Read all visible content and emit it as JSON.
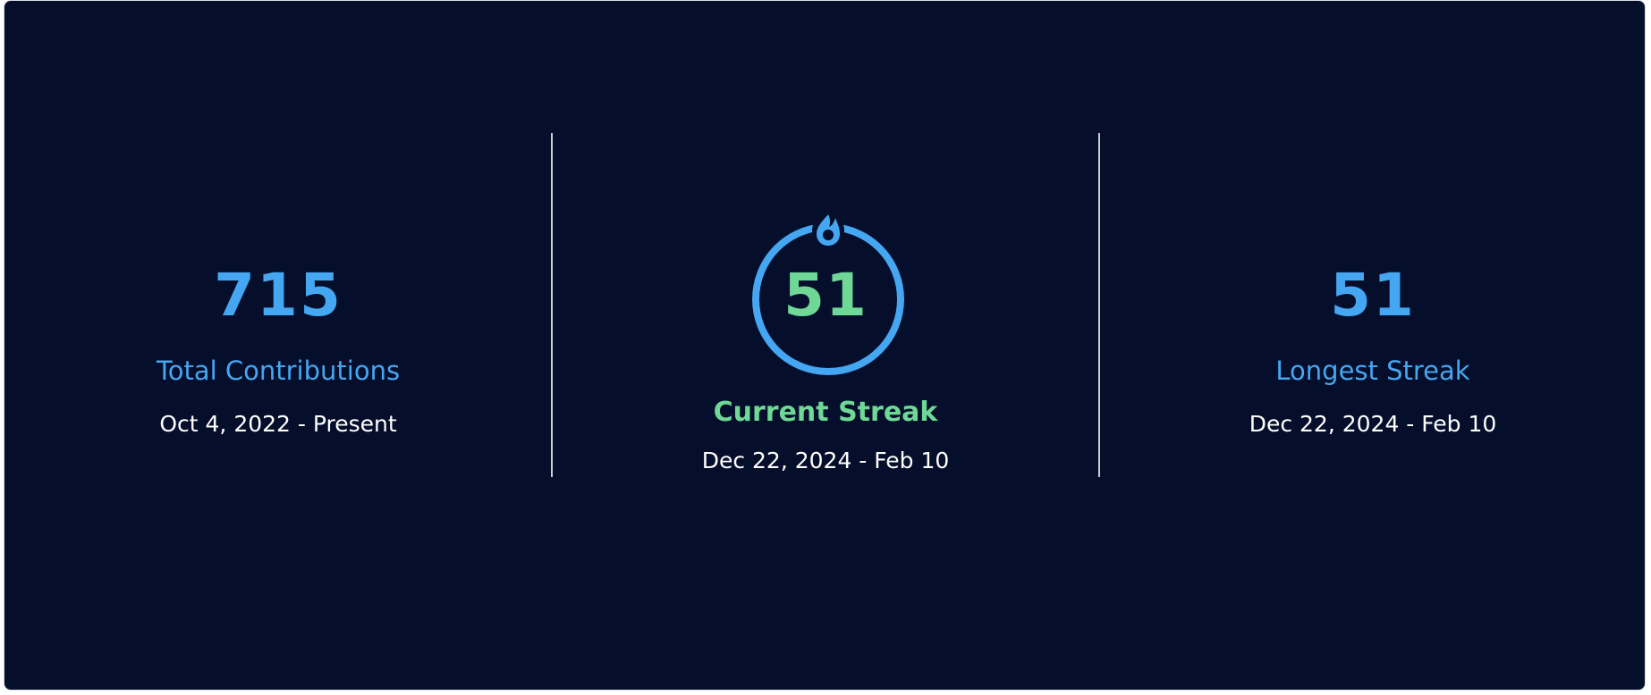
{
  "stats": {
    "total": {
      "value": "715",
      "label": "Total Contributions",
      "range": "Oct 4, 2022 - Present"
    },
    "current": {
      "value": "51",
      "label": "Current Streak",
      "range": "Dec 22, 2024 - Feb 10",
      "icon": "flame-icon"
    },
    "longest": {
      "value": "51",
      "label": "Longest Streak",
      "range": "Dec 22, 2024 - Feb 10"
    }
  },
  "colors": {
    "background": "#050e2a",
    "accent_blue": "#45a6f2",
    "accent_green": "#6fd897",
    "text": "#ffffff",
    "divider": "#c9ced8"
  }
}
